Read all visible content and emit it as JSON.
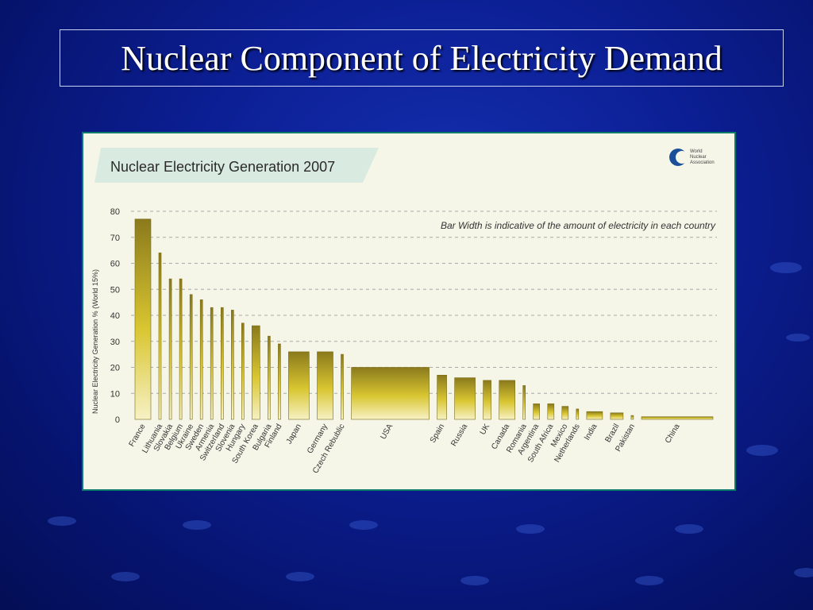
{
  "slide": {
    "title": "Nuclear Component of Electricity Demand"
  },
  "chart_data": {
    "type": "bar",
    "title": "Nuclear Electricity Generation 2007",
    "note": "Bar Width is indicative of the amount of electricity in each country",
    "ylabel": "Nuclear Electricity Generation % (World 15%)",
    "xlabel": "",
    "ylim": [
      0,
      80
    ],
    "yticks": [
      0,
      10,
      20,
      30,
      40,
      50,
      60,
      70,
      80
    ],
    "grid": true,
    "logo_text": [
      "World",
      "Nuclear",
      "Association"
    ],
    "categories": [
      "France",
      "Lithuania",
      "Slovakia",
      "Belgium",
      "Ukraine",
      "Sweden",
      "Armenia",
      "Switzerland",
      "Slovenia",
      "Hungary",
      "South Korea",
      "Bulgaria",
      "Finland",
      "Japan",
      "Germany",
      "Czech Rebublic",
      "USA",
      "Spain",
      "Russia",
      "UK",
      "Canada",
      "Romania",
      "Argentina",
      "South Africa",
      "Mexico",
      "Netherlands",
      "India",
      "Brazil",
      "Pakistan",
      "China"
    ],
    "values": [
      77,
      64,
      54,
      54,
      48,
      46,
      43,
      43,
      42,
      37,
      36,
      32,
      29,
      26,
      26,
      25,
      20,
      17,
      16,
      15,
      15,
      13,
      6,
      6,
      5,
      4,
      3,
      2.5,
      1.5,
      1
    ],
    "widths": [
      20,
      3,
      3,
      3,
      3,
      3,
      3,
      3,
      3,
      3,
      10,
      3,
      3,
      26,
      20,
      3,
      98,
      12,
      26,
      10,
      20,
      3,
      8,
      8,
      8,
      3,
      20,
      16,
      3,
      90
    ],
    "colors": {
      "bar_top": "#8a7a1c",
      "bar_mid": "#d9c631",
      "bar_bottom": "#f6f1c4",
      "bar_stroke": "#7a6c18",
      "banner": "#d9ebe0",
      "grid": "#aaaaaa"
    }
  }
}
